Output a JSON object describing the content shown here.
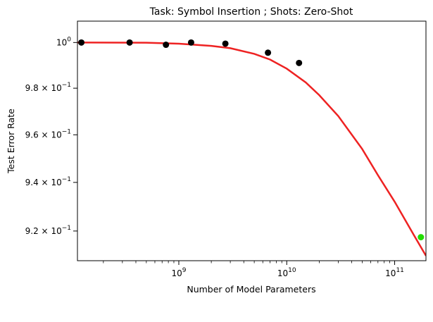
{
  "chart_data": {
    "type": "scatter",
    "title": "Task: Symbol Insertion ; Shots: Zero-Shot",
    "xlabel": "Number of Model Parameters",
    "ylabel": "Test Error Rate",
    "xscale": "log",
    "yscale": "log",
    "xlim": [
      115000000.0,
      195000000000.0
    ],
    "ylim": [
      0.908,
      1.0095
    ],
    "x_ticks": [
      {
        "value": 1000000000.0,
        "label_base": "10",
        "label_exp": "9"
      },
      {
        "value": 10000000000.0,
        "label_base": "10",
        "label_exp": "10"
      },
      {
        "value": 100000000000.0,
        "label_base": "10",
        "label_exp": "11"
      }
    ],
    "y_ticks": [
      {
        "value": 1.0,
        "label_base": "10",
        "label_exp": "0",
        "label_mult": ""
      },
      {
        "value": 0.98,
        "label_base": "10",
        "label_exp": "−1",
        "label_mult": "9.8 × "
      },
      {
        "value": 0.96,
        "label_base": "10",
        "label_exp": "−1",
        "label_mult": "9.6 × "
      },
      {
        "value": 0.94,
        "label_base": "10",
        "label_exp": "−1",
        "label_mult": "9.4 × "
      },
      {
        "value": 0.92,
        "label_base": "10",
        "label_exp": "−1",
        "label_mult": "9.2 × "
      }
    ],
    "grid": false,
    "series": [
      {
        "color": "#000000",
        "points": [
          {
            "x": 125000000.0,
            "y": 1.0
          },
          {
            "x": 350000000.0,
            "y": 1.0
          },
          {
            "x": 760000000.0,
            "y": 0.999
          },
          {
            "x": 1300000000.0,
            "y": 1.0
          },
          {
            "x": 2700000000.0,
            "y": 0.9995
          },
          {
            "x": 6700000000.0,
            "y": 0.9955
          },
          {
            "x": 13000000000.0,
            "y": 0.991
          }
        ]
      },
      {
        "color": "#22dd00",
        "points": [
          {
            "x": 175000000000.0,
            "y": 0.9175
          }
        ]
      }
    ],
    "fit_line": {
      "color": "#ee2222",
      "points": [
        {
          "x": 115000000.0,
          "y": 1.0
        },
        {
          "x": 500000000.0,
          "y": 0.9999
        },
        {
          "x": 1000000000.0,
          "y": 0.9995
        },
        {
          "x": 2000000000.0,
          "y": 0.9985
        },
        {
          "x": 3000000000.0,
          "y": 0.9975
        },
        {
          "x": 5000000000.0,
          "y": 0.995
        },
        {
          "x": 7000000000.0,
          "y": 0.9925
        },
        {
          "x": 10000000000.0,
          "y": 0.9885
        },
        {
          "x": 15000000000.0,
          "y": 0.9825
        },
        {
          "x": 20000000000.0,
          "y": 0.977
        },
        {
          "x": 30000000000.0,
          "y": 0.968
        },
        {
          "x": 50000000000.0,
          "y": 0.954
        },
        {
          "x": 70000000000.0,
          "y": 0.943
        },
        {
          "x": 100000000000.0,
          "y": 0.932
        },
        {
          "x": 150000000000.0,
          "y": 0.9185
        },
        {
          "x": 195000000000.0,
          "y": 0.91
        }
      ]
    }
  }
}
